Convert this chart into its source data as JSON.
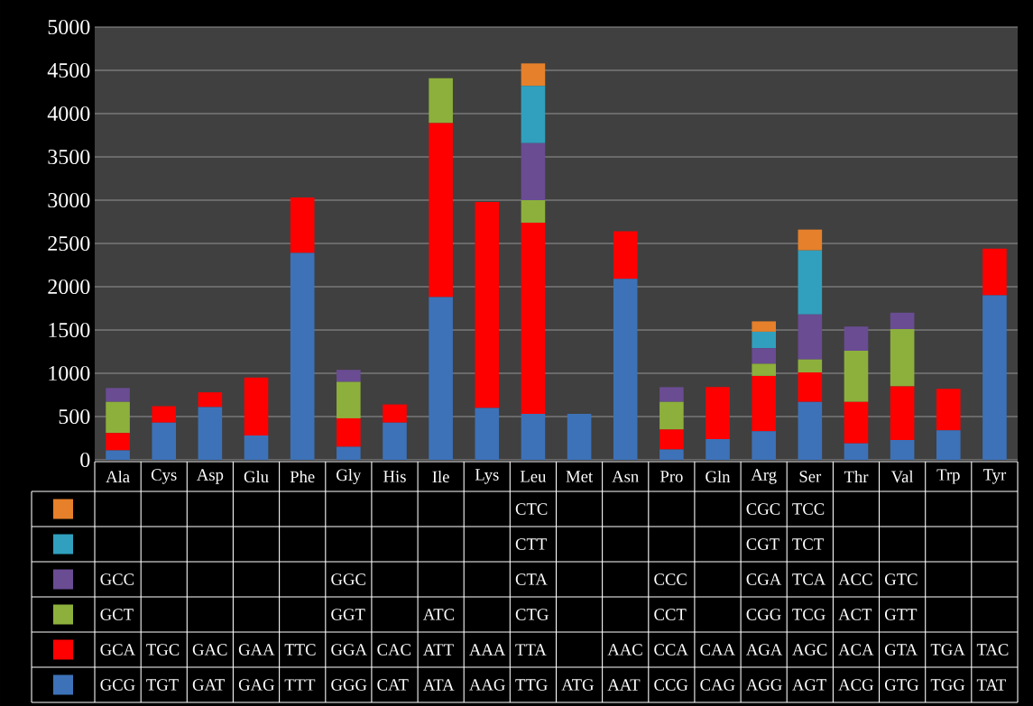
{
  "chart_data": {
    "type": "bar",
    "stacked": true,
    "grid": "y",
    "categories": [
      "Ala",
      "Cys",
      "Asp",
      "Glu",
      "Phe",
      "Gly",
      "His",
      "Ile",
      "Lys",
      "Leu",
      "Met",
      "Asn",
      "Pro",
      "Gln",
      "Arg",
      "Ser",
      "Thr",
      "Val",
      "Trp",
      "Tyr"
    ],
    "ylim": [
      0,
      5000
    ],
    "yticks": [
      0,
      500,
      1000,
      1500,
      2000,
      2500,
      3000,
      3500,
      4000,
      4500,
      5000
    ],
    "series": [
      {
        "color": "#3d72b8",
        "values": [
          110,
          430,
          610,
          280,
          2390,
          150,
          430,
          1880,
          600,
          530,
          530,
          2090,
          120,
          240,
          330,
          670,
          190,
          230,
          340,
          1900
        ],
        "value_labels": [
          "GCG",
          "TGT",
          "GAT",
          "GAG",
          "TTT",
          "GGG",
          "CAT",
          "ATA",
          "AAG",
          "TTG",
          "ATG",
          "AAT",
          "CCG",
          "CAG",
          "AGG",
          "AGT",
          "ACG",
          "GTG",
          "TGG",
          "TAT"
        ]
      },
      {
        "color": "#ff0000",
        "values": [
          200,
          190,
          170,
          670,
          640,
          330,
          210,
          2010,
          2380,
          2210,
          null,
          550,
          230,
          600,
          640,
          340,
          480,
          620,
          480,
          540
        ],
        "value_labels": [
          "GCA",
          "TGC",
          "GAC",
          "GAA",
          "TTC",
          "GGA",
          "CAC",
          "ATT",
          "AAA",
          "TTA",
          null,
          "AAC",
          "CCA",
          "CAA",
          "AGA",
          "AGC",
          "ACA",
          "GTA",
          "TGA",
          "TAC"
        ]
      },
      {
        "color": "#8db03c",
        "values": [
          360,
          null,
          null,
          null,
          null,
          420,
          null,
          520,
          null,
          260,
          null,
          null,
          320,
          null,
          140,
          150,
          590,
          660,
          null,
          null
        ],
        "value_labels": [
          "GCT",
          null,
          null,
          null,
          null,
          "GGT",
          null,
          "ATC",
          null,
          "CTG",
          null,
          null,
          "CCT",
          null,
          "CGG",
          "TCG",
          "ACT",
          "GTT",
          null,
          null
        ]
      },
      {
        "color": "#6a4c93",
        "values": [
          160,
          null,
          null,
          null,
          null,
          140,
          null,
          null,
          null,
          660,
          null,
          null,
          170,
          null,
          180,
          520,
          280,
          190,
          null,
          null
        ],
        "value_labels": [
          "GCC",
          null,
          null,
          null,
          null,
          "GGC",
          null,
          null,
          null,
          "CTA",
          null,
          null,
          "CCC",
          null,
          "CGA",
          "TCA",
          "ACC",
          "GTC",
          null,
          null
        ]
      },
      {
        "color": "#31a0be",
        "values": [
          null,
          null,
          null,
          null,
          null,
          null,
          null,
          null,
          null,
          660,
          null,
          null,
          null,
          null,
          190,
          740,
          null,
          null,
          null,
          null
        ],
        "value_labels": [
          null,
          null,
          null,
          null,
          null,
          null,
          null,
          null,
          null,
          "CTT",
          null,
          null,
          null,
          null,
          "CGT",
          "TCT",
          null,
          null,
          null,
          null
        ]
      },
      {
        "color": "#e6802a",
        "values": [
          null,
          null,
          null,
          null,
          null,
          null,
          null,
          null,
          null,
          260,
          null,
          null,
          null,
          null,
          120,
          240,
          null,
          null,
          null,
          null
        ],
        "value_labels": [
          null,
          null,
          null,
          null,
          null,
          null,
          null,
          null,
          null,
          "CTC",
          null,
          null,
          null,
          null,
          "CGC",
          "TCC",
          null,
          null,
          null,
          null
        ]
      }
    ]
  }
}
